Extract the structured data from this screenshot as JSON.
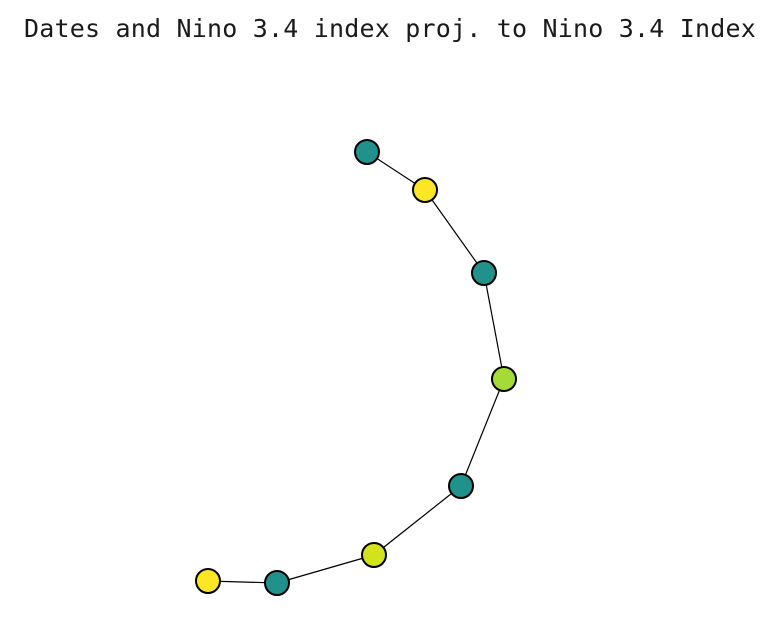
{
  "title": "Dates and Nino 3.4 index proj. to Nino 3.4 Index",
  "palette": {
    "teal": "#21918c",
    "yellow": "#fde725",
    "lime": "#a5db36",
    "yellow_green": "#d2e21b"
  },
  "graph": {
    "nodes": [
      {
        "id": "n1",
        "color": "#21918c"
      },
      {
        "id": "n2",
        "color": "#fde725"
      },
      {
        "id": "n3",
        "color": "#21918c"
      },
      {
        "id": "n4",
        "color": "#a5db36"
      },
      {
        "id": "n5",
        "color": "#21918c"
      },
      {
        "id": "n6",
        "color": "#d2e21b"
      },
      {
        "id": "n7",
        "color": "#21918c"
      },
      {
        "id": "n8",
        "color": "#fde725"
      }
    ],
    "edges": [
      [
        "n1",
        "n2"
      ],
      [
        "n2",
        "n3"
      ],
      [
        "n3",
        "n4"
      ],
      [
        "n4",
        "n5"
      ],
      [
        "n5",
        "n6"
      ],
      [
        "n6",
        "n7"
      ],
      [
        "n7",
        "n8"
      ]
    ]
  }
}
